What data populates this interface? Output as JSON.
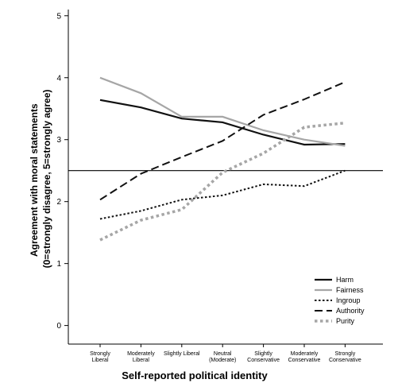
{
  "chart_data": {
    "type": "line",
    "xlabel": "Self-reported political identity",
    "ylabel_line1": "Agreement with moral statements",
    "ylabel_line2": "(0=strongly disagree, 5=strongly agree)",
    "categories": [
      [
        "Strongly",
        "Liberal"
      ],
      [
        "Moderately",
        "Liberal"
      ],
      [
        "Slightly Liberal"
      ],
      [
        "Neutral",
        "(Moderate)"
      ],
      [
        "Slightly",
        "Conservative"
      ],
      [
        "Moderately",
        "Conservative"
      ],
      [
        "Strongly",
        "Conservative"
      ]
    ],
    "ylim": [
      -0.3,
      5.1
    ],
    "yticks": [
      0,
      1,
      2,
      3,
      4,
      5
    ],
    "reference_line": 2.5,
    "legend_position": "bottom-right",
    "series": [
      {
        "name": "Harm",
        "values": [
          3.64,
          3.52,
          3.34,
          3.28,
          3.08,
          2.92,
          2.93
        ],
        "color": "#111111",
        "style": "solid"
      },
      {
        "name": "Fairness",
        "values": [
          4.0,
          3.75,
          3.37,
          3.37,
          3.15,
          3.0,
          2.9
        ],
        "color": "#a6a6a6",
        "style": "solid"
      },
      {
        "name": "Ingroup",
        "values": [
          1.72,
          1.85,
          2.03,
          2.1,
          2.28,
          2.25,
          2.5
        ],
        "color": "#111111",
        "style": "dotted"
      },
      {
        "name": "Authority",
        "values": [
          2.03,
          2.45,
          2.72,
          2.98,
          3.4,
          3.65,
          3.93
        ],
        "color": "#111111",
        "style": "dashed"
      },
      {
        "name": "Purity",
        "values": [
          1.38,
          1.7,
          1.87,
          2.47,
          2.78,
          3.2,
          3.27
        ],
        "color": "#a6a6a6",
        "style": "dotted-thick"
      }
    ]
  }
}
